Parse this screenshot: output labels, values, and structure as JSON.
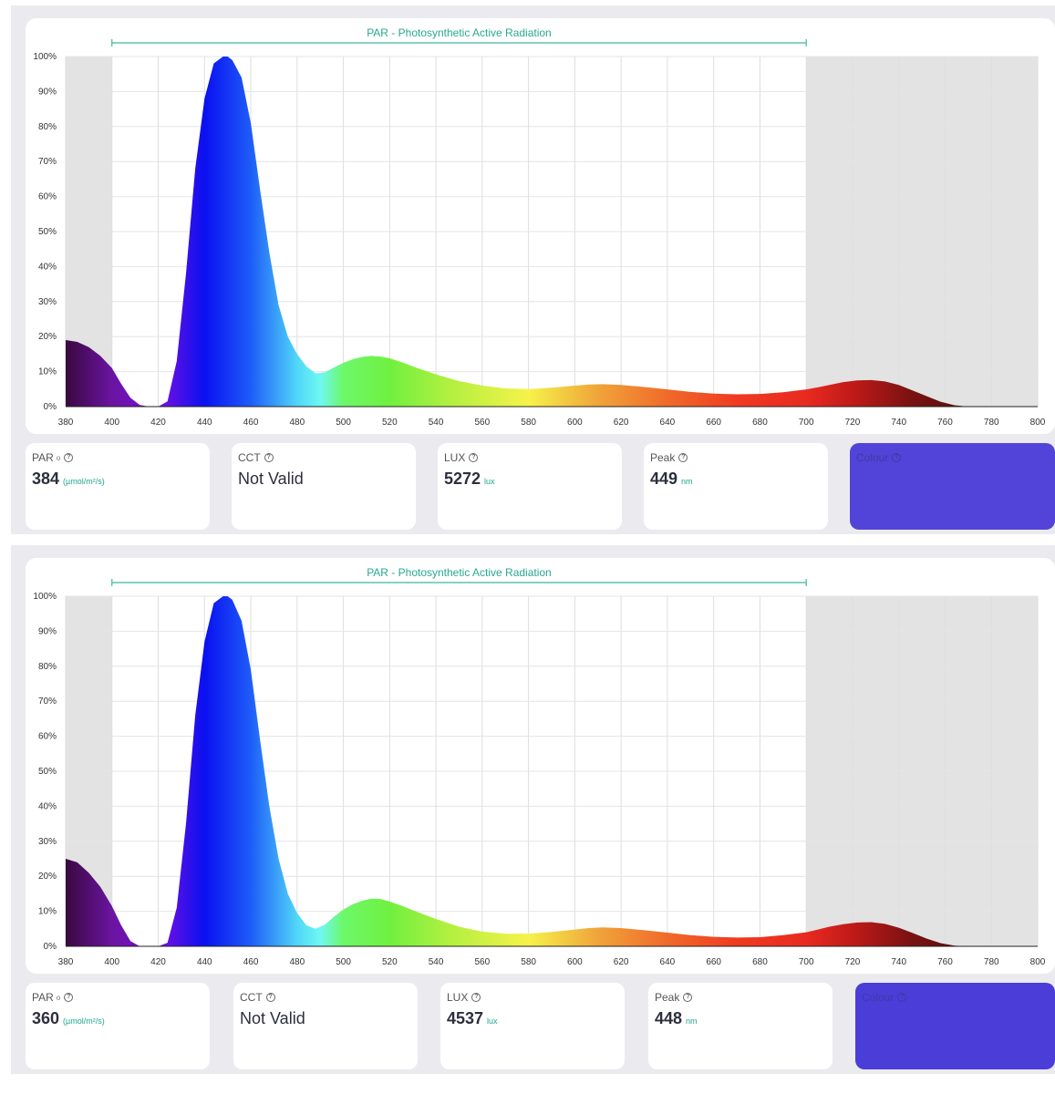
{
  "panels": [
    {
      "chart_data": {
        "type": "area",
        "title": "PAR - Photosynthetic Active Radiation",
        "par_range": [
          400,
          700
        ],
        "xlim": [
          380,
          800
        ],
        "ylim": [
          0,
          100
        ],
        "x_ticks": [
          "380",
          "400",
          "420",
          "440",
          "460",
          "480",
          "500",
          "520",
          "540",
          "560",
          "580",
          "600",
          "620",
          "640",
          "660",
          "680",
          "700",
          "720",
          "740",
          "760",
          "780",
          "800"
        ],
        "y_ticks": [
          "0%",
          "10%",
          "20%",
          "30%",
          "40%",
          "50%",
          "60%",
          "70%",
          "80%",
          "90%",
          "100%"
        ],
        "x": [
          380,
          385,
          390,
          395,
          400,
          404,
          408,
          412,
          416,
          420,
          424,
          428,
          432,
          436,
          440,
          444,
          448,
          450,
          452,
          456,
          460,
          464,
          468,
          472,
          476,
          480,
          484,
          488,
          492,
          496,
          500,
          504,
          508,
          512,
          516,
          520,
          526,
          532,
          540,
          550,
          560,
          570,
          580,
          590,
          600,
          606,
          612,
          620,
          630,
          640,
          650,
          660,
          670,
          680,
          690,
          700,
          705,
          710,
          716,
          722,
          728,
          734,
          740,
          746,
          752,
          758,
          764,
          770,
          780,
          790,
          800
        ],
        "y": [
          19,
          18.5,
          17,
          14.5,
          11,
          6.5,
          2.5,
          0.5,
          0,
          0,
          1.5,
          13,
          38,
          68,
          88,
          98,
          100,
          100,
          99,
          94,
          81,
          62,
          44,
          29,
          20,
          15,
          11.5,
          9.5,
          9.8,
          11.2,
          12.5,
          13.5,
          14.2,
          14.5,
          14.3,
          13.8,
          12.5,
          11,
          9.2,
          7.3,
          6,
          5.2,
          5,
          5.4,
          6,
          6.3,
          6.4,
          6.2,
          5.6,
          4.9,
          4.2,
          3.7,
          3.5,
          3.6,
          4.1,
          4.9,
          5.5,
          6.2,
          7,
          7.5,
          7.6,
          7.2,
          6.2,
          4.6,
          3,
          1.4,
          0.4,
          0,
          0,
          0,
          0
        ]
      },
      "stats": {
        "par": {
          "label": "PAR",
          "sub": "o",
          "value": "384",
          "unit": "(µmol/m²/s)"
        },
        "cct": {
          "label": "CCT",
          "value": "Not Valid"
        },
        "lux": {
          "label": "LUX",
          "value": "5272",
          "unit": "lux"
        },
        "peak": {
          "label": "Peak",
          "value": "449",
          "unit": "nm"
        },
        "colour": {
          "label": "Colour",
          "swatch": "#5244d8"
        }
      }
    },
    {
      "chart_data": {
        "type": "area",
        "title": "PAR - Photosynthetic Active Radiation",
        "par_range": [
          400,
          700
        ],
        "xlim": [
          380,
          800
        ],
        "ylim": [
          0,
          100
        ],
        "x_ticks": [
          "380",
          "400",
          "420",
          "440",
          "460",
          "480",
          "500",
          "520",
          "540",
          "560",
          "580",
          "600",
          "620",
          "640",
          "660",
          "680",
          "700",
          "720",
          "740",
          "760",
          "780",
          "800"
        ],
        "y_ticks": [
          "0%",
          "10%",
          "20%",
          "30%",
          "40%",
          "50%",
          "60%",
          "70%",
          "80%",
          "90%",
          "100%"
        ],
        "x": [
          380,
          385,
          390,
          395,
          400,
          404,
          408,
          412,
          416,
          420,
          424,
          428,
          432,
          436,
          440,
          444,
          448,
          450,
          452,
          456,
          460,
          464,
          468,
          472,
          476,
          480,
          484,
          488,
          492,
          496,
          500,
          504,
          508,
          512,
          516,
          520,
          526,
          532,
          540,
          550,
          560,
          570,
          580,
          590,
          600,
          606,
          612,
          620,
          630,
          640,
          650,
          660,
          670,
          680,
          690,
          700,
          705,
          710,
          716,
          722,
          728,
          734,
          740,
          746,
          752,
          758,
          764,
          770,
          780,
          790,
          800
        ],
        "y": [
          25,
          24,
          21,
          17,
          11.5,
          6,
          1.5,
          0,
          0,
          0,
          1,
          11,
          35,
          66,
          87,
          98,
          100,
          100,
          99,
          93,
          79,
          59,
          40,
          25,
          15,
          9.5,
          6,
          5,
          6.2,
          8.5,
          10.5,
          12,
          13,
          13.6,
          13.5,
          12.8,
          11.4,
          9.8,
          7.8,
          5.6,
          4.2,
          3.6,
          3.6,
          4.1,
          4.8,
          5.2,
          5.4,
          5.2,
          4.6,
          3.9,
          3.2,
          2.7,
          2.5,
          2.6,
          3.2,
          4,
          4.8,
          5.6,
          6.3,
          6.8,
          6.9,
          6.4,
          5.3,
          3.8,
          2.2,
          0.9,
          0.2,
          0,
          0,
          0,
          0
        ]
      },
      "stats": {
        "par": {
          "label": "PAR",
          "sub": "o",
          "value": "360",
          "unit": "(µmol/m²/s)"
        },
        "cct": {
          "label": "CCT",
          "value": "Not Valid"
        },
        "lux": {
          "label": "LUX",
          "value": "4537",
          "unit": "lux"
        },
        "peak": {
          "label": "Peak",
          "value": "448",
          "unit": "nm"
        },
        "colour": {
          "label": "Colour",
          "swatch": "#4a3dd8"
        }
      }
    }
  ]
}
